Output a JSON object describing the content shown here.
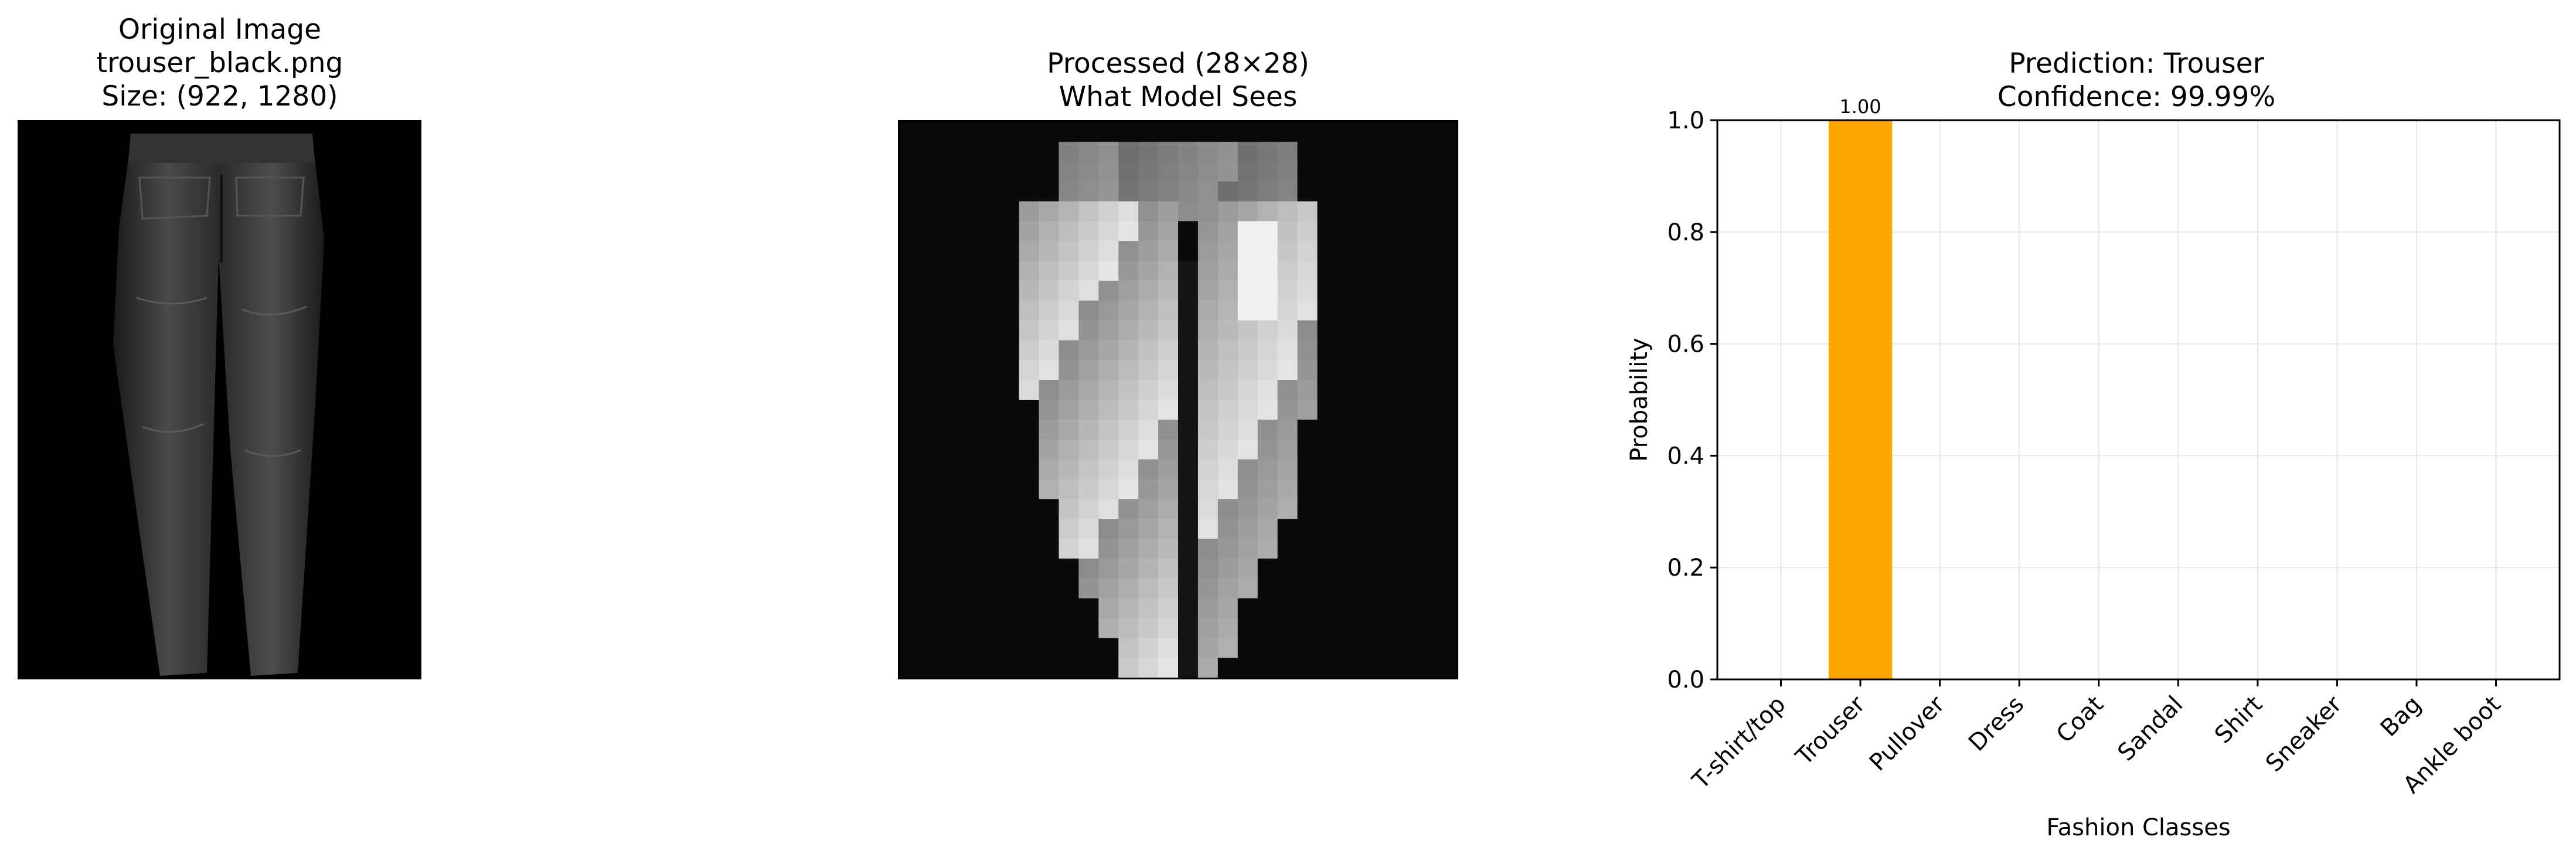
{
  "panels": {
    "original": {
      "title_line1": "Original Image",
      "title_line2": "trouser_black.png",
      "title_line3": "Size: (922, 1280)",
      "image_icon": "trouser-photo"
    },
    "processed": {
      "title_line1": "Processed (28×28)",
      "title_line2": "What Model Sees",
      "image_icon": "pixelated-trouser"
    },
    "prediction": {
      "title_line1": "Prediction: Trouser",
      "title_line2": "Confidence: 99.99%"
    }
  },
  "chart_data": {
    "type": "bar",
    "categories": [
      "T-shirt/top",
      "Trouser",
      "Pullover",
      "Dress",
      "Coat",
      "Sandal",
      "Shirt",
      "Sneaker",
      "Bag",
      "Ankle boot"
    ],
    "values": [
      0.0,
      0.9999,
      0.0,
      0.0,
      0.0,
      0.0,
      0.0,
      0.0,
      0.0,
      0.0
    ],
    "data_labels": [
      "",
      "1.00",
      "",
      "",
      "",
      "",
      "",
      "",
      "",
      ""
    ],
    "title": "Prediction: Trouser\nConfidence: 99.99%",
    "xlabel": "Fashion Classes",
    "ylabel": "Probability",
    "ylim": [
      0,
      1.0
    ],
    "yticks": [
      "0.0",
      "0.2",
      "0.4",
      "0.6",
      "0.8",
      "1.0"
    ],
    "grid": true,
    "bar_color": "#FFA500"
  }
}
